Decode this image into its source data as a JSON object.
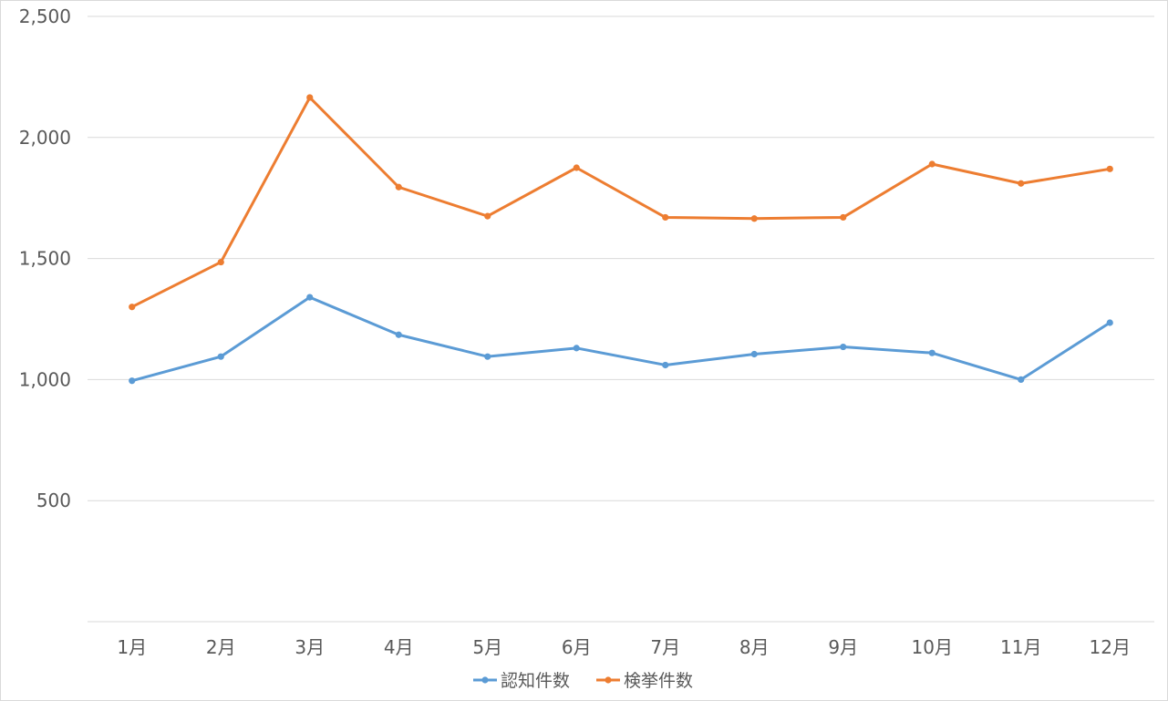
{
  "chart_data": {
    "type": "line",
    "title": "",
    "xlabel": "",
    "ylabel": "",
    "categories": [
      "1月",
      "2月",
      "3月",
      "4月",
      "5月",
      "6月",
      "7月",
      "8月",
      "9月",
      "10月",
      "11月",
      "12月"
    ],
    "ylim": [
      0,
      2500
    ],
    "yticks": [
      500,
      1000,
      1500,
      2000,
      2500
    ],
    "ytick_labels": [
      "500",
      "1,000",
      "1,500",
      "2,000",
      "2,500"
    ],
    "grid": true,
    "legend_position": "bottom",
    "series": [
      {
        "name": "認知件数",
        "color": "#5b9bd5",
        "values": [
          995,
          1095,
          1340,
          1185,
          1095,
          1130,
          1060,
          1105,
          1135,
          1110,
          1000,
          1235
        ]
      },
      {
        "name": "検挙件数",
        "color": "#ed7d31",
        "values": [
          1300,
          1485,
          2165,
          1795,
          1675,
          1875,
          1670,
          1665,
          1670,
          1890,
          1810,
          1870
        ]
      }
    ]
  }
}
